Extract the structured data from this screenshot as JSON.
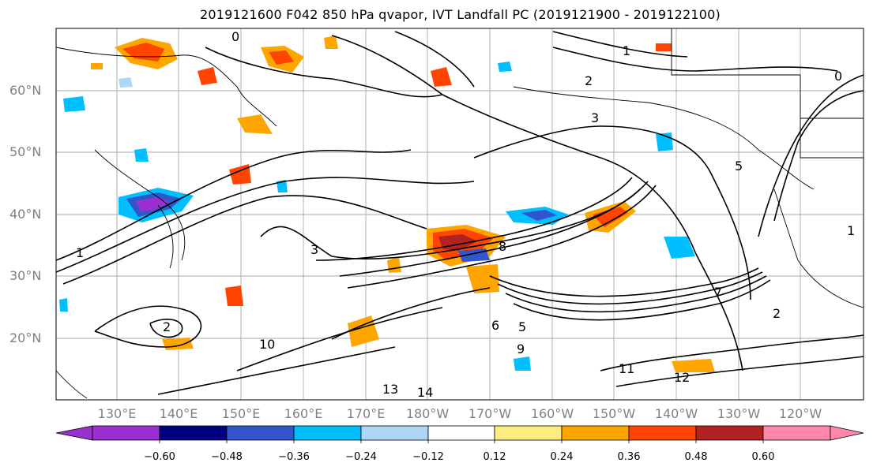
{
  "title": "2019121600 F042 850 hPa qvapor, IVT Landfall PC (2019121900 - 2019122100)",
  "lat_labels": [
    "60°N",
    "50°N",
    "40°N",
    "30°N",
    "20°N"
  ],
  "lon_labels": [
    "130°E",
    "140°E",
    "150°E",
    "160°E",
    "170°E",
    "180°W",
    "170°W",
    "160°W",
    "150°W",
    "140°W",
    "130°W",
    "120°W"
  ],
  "colorbar": {
    "tick_labels": [
      "−0.60",
      "−0.48",
      "−0.36",
      "−0.24",
      "−0.12",
      "0.12",
      "0.24",
      "0.36",
      "0.48",
      "0.60"
    ],
    "colors": [
      "#9b30d0",
      "#000080",
      "#3355cc",
      "#00bfff",
      "#add8f5",
      "#ffffff",
      "#ffec80",
      "#ffa500",
      "#ff4500",
      "#b22222",
      "#ff88aa"
    ]
  },
  "contour_labels": [
    "0",
    "1",
    "2",
    "3",
    "5",
    "1",
    "3",
    "8",
    "7",
    "6",
    "5",
    "2",
    "9",
    "10",
    "11",
    "12",
    "13",
    "14",
    "2",
    "1",
    "0"
  ]
}
